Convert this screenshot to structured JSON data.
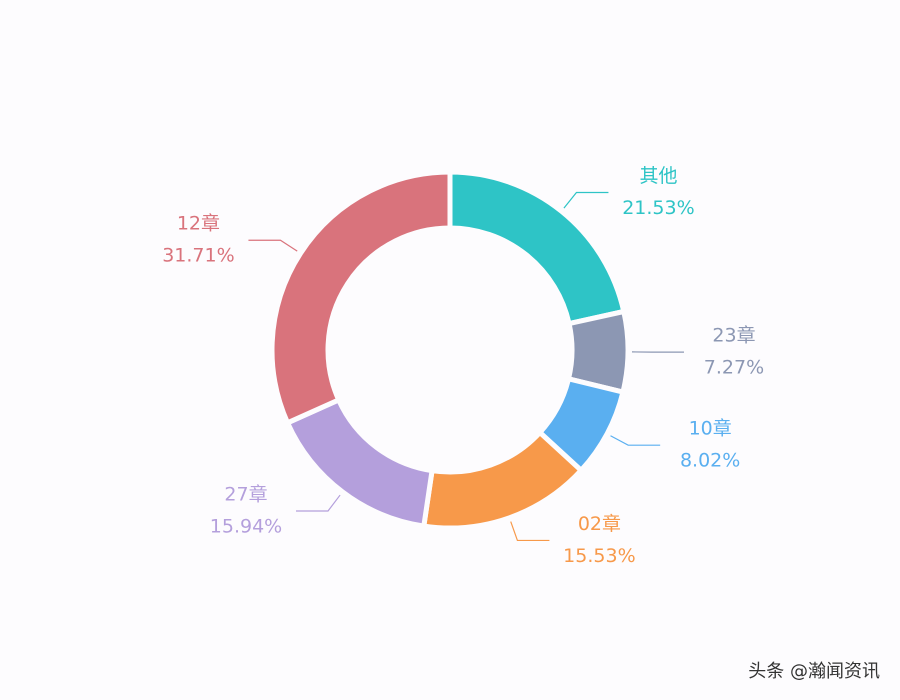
{
  "chart_data": {
    "type": "donut",
    "categories": [
      "其他",
      "23章",
      "10章",
      "02章",
      "27章",
      "12章"
    ],
    "values": [
      21.53,
      7.27,
      8.02,
      15.53,
      15.94,
      31.71
    ],
    "value_labels": [
      "21.53%",
      "7.27%",
      "8.02%",
      "15.53%",
      "15.94%",
      "31.71%"
    ],
    "colors": [
      "#2ec4c6",
      "#8c97b3",
      "#5aaff0",
      "#f7994a",
      "#b49fdc",
      "#d9737c"
    ]
  },
  "watermark": "头条 @瀚闻资讯"
}
